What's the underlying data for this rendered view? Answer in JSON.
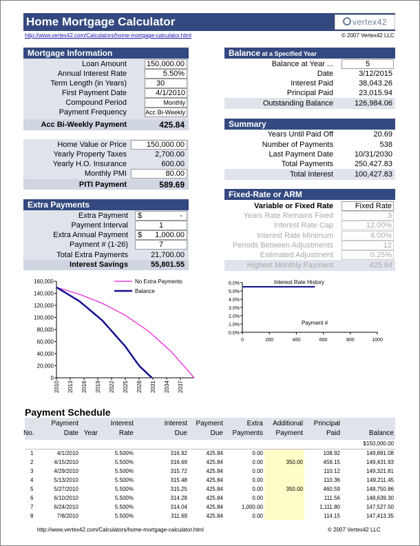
{
  "header": {
    "title": "Home Mortgage Calculator",
    "logo_text": "vertex42",
    "url": "http://www.vertex42.com/Calculators/home-mortgage-calculator.html",
    "copyright": "© 2007 Vertex42 LLC"
  },
  "mortgage": {
    "heading": "Mortgage Information",
    "loan_amount_label": "Loan Amount",
    "loan_amount": "150,000.00",
    "rate_label": "Annual Interest Rate",
    "rate": "5.50%",
    "term_label": "Term Length (in Years)",
    "term": "30",
    "first_payment_label": "First Payment Date",
    "first_payment": "4/1/2010",
    "compound_label": "Compound Period",
    "compound": "Monthly",
    "frequency_label": "Payment Frequency",
    "frequency": "Acc Bi-Weekly",
    "payment_label": "Acc Bi-Weekly Payment",
    "payment": "425.84",
    "home_value_label": "Home Value or Price",
    "home_value": "150,000.00",
    "tax_label": "Yearly Property Taxes",
    "tax": "2,700.00",
    "insurance_label": "Yearly H.O. Insurance",
    "insurance": "600.00",
    "pmi_label": "Monthly PMI",
    "pmi": "80.00",
    "piti_label": "PITI Payment",
    "piti": "589.69"
  },
  "extra": {
    "heading": "Extra Payments",
    "extra_payment_label": "Extra Payment",
    "extra_payment_currency": "$",
    "extra_payment": "-",
    "interval_label": "Payment Interval",
    "interval": "1",
    "annual_label": "Extra Annual Payment",
    "annual_currency": "$",
    "annual": "1,000.00",
    "payment_num_label": "Payment # (1-26)",
    "payment_num": "7",
    "total_label": "Total Extra Payments",
    "total": "21,700.00",
    "savings_label": "Interest Savings",
    "savings": "55,801.55"
  },
  "balance": {
    "heading": "Balance",
    "heading_small": " at a Specified Year",
    "year_label": "Balance at Year ...",
    "year": "5",
    "date_label": "Date",
    "date": "3/12/2015",
    "interest_label": "Interest Paid",
    "interest": "38,043.26",
    "principal_label": "Principal Paid",
    "principal": "23,015.94",
    "outstanding_label": "Outstanding Balance",
    "outstanding": "126,984.06"
  },
  "summary": {
    "heading": "Summary",
    "years_label": "Years Until Paid Off",
    "years": "20.69",
    "num_label": "Number of Payments",
    "num": "538",
    "last_label": "Last Payment Date",
    "last": "10/31/2030",
    "total_label": "Total Payments",
    "total": "250,427.83",
    "interest_label": "Total Interest",
    "interest": "100,427.83"
  },
  "arm": {
    "heading": "Fixed-Rate or ARM",
    "type_label": "Variable or Fixed Rate",
    "type": "Fixed Rate",
    "remains_label": "Years Rate Remains Fixed",
    "remains": "3",
    "cap_label": "Interest Rate Cap",
    "cap": "12.00%",
    "min_label": "Interest Rate Minimum",
    "min": "4.00%",
    "periods_label": "Periods Between Adjustments",
    "periods": "12",
    "est_label": "Estimated Adjustment",
    "est": "0.25%",
    "highest_label": "Highest Monthly Payment",
    "highest": "425.84"
  },
  "chart_data": [
    {
      "type": "line",
      "legend": [
        "No Extra Payments",
        "Balance"
      ],
      "y_ticks": [
        "160,000",
        "140,000",
        "120,000",
        "100,000",
        "80,000",
        "60,000",
        "40,000",
        "20,000",
        "0"
      ],
      "x_ticks": [
        "2010",
        "2013",
        "2016",
        "2019",
        "2022",
        "2025",
        "2028",
        "2031",
        "2034",
        "2037"
      ],
      "ylim": [
        0,
        160000
      ],
      "xlim": [
        2010,
        2040
      ],
      "series": [
        {
          "name": "No Extra Payments",
          "color": "#e619d6",
          "x": [
            2010,
            2015,
            2020,
            2025,
            2030,
            2035,
            2040
          ],
          "y": [
            150000,
            138500,
            123500,
            103700,
            77600,
            43500,
            0
          ]
        },
        {
          "name": "Balance",
          "color": "#10108e",
          "x": [
            2010,
            2015,
            2020,
            2025,
            2028,
            2030.8
          ],
          "y": [
            150000,
            127000,
            95000,
            52000,
            20000,
            0
          ]
        }
      ]
    },
    {
      "type": "line",
      "title": "Interest Rate History",
      "xlabel": "Payment #",
      "y_ticks": [
        "6.0%",
        "5.0%",
        "4.0%",
        "3.0%",
        "2.0%",
        "1.0%",
        "0.0%"
      ],
      "x_ticks": [
        "0",
        "200",
        "400",
        "600",
        "800",
        "1000"
      ],
      "ylim": [
        0,
        6
      ],
      "xlim": [
        0,
        1000
      ],
      "series": [
        {
          "color": "#10108e",
          "x": [
            0,
            538
          ],
          "y": [
            5.5,
            5.5
          ]
        }
      ]
    }
  ],
  "schedule": {
    "title": "Payment Schedule",
    "headers_top": [
      "",
      "Payment",
      "",
      "Interest",
      "Interest",
      "Payment",
      "Extra",
      "Additional",
      "Principal",
      ""
    ],
    "headers_bottom": [
      "No.",
      "Date",
      "Year",
      "Rate",
      "Due",
      "Due",
      "Payments",
      "Payment",
      "Paid",
      "Balance"
    ],
    "opening_balance": "$150,000.00",
    "rows": [
      [
        "1",
        "4/1/2010",
        "",
        "5.500%",
        "316.92",
        "425.84",
        "0.00",
        "",
        "108.92",
        "149,891.08"
      ],
      [
        "2",
        "4/15/2010",
        "",
        "5.500%",
        "316.69",
        "425.84",
        "0.00",
        "350.00",
        "459.15",
        "149,431.93"
      ],
      [
        "3",
        "4/29/2010",
        "",
        "5.500%",
        "315.72",
        "425.84",
        "0.00",
        "",
        "110.12",
        "149,321.81"
      ],
      [
        "4",
        "5/13/2010",
        "",
        "5.500%",
        "315.48",
        "425.84",
        "0.00",
        "",
        "110.36",
        "149,211.45"
      ],
      [
        "5",
        "5/27/2010",
        "",
        "5.500%",
        "315.25",
        "425.84",
        "0.00",
        "350.00",
        "460.59",
        "148,750.86"
      ],
      [
        "6",
        "6/10/2010",
        "",
        "5.500%",
        "314.28",
        "425.84",
        "0.00",
        "",
        "111.56",
        "148,639.30"
      ],
      [
        "7",
        "6/24/2010",
        "",
        "5.500%",
        "314.04",
        "425.84",
        "1,000.00",
        "",
        "1,111.80",
        "147,527.50"
      ],
      [
        "8",
        "7/8/2010",
        "",
        "5.500%",
        "311.69",
        "425.84",
        "0.00",
        "",
        "114.15",
        "147,413.35"
      ]
    ]
  },
  "footer": {
    "url": "http://www.vertex42.com/Calculators/home-mortgage-calculator.html",
    "copyright": "© 2007 Vertex42 LLC"
  }
}
